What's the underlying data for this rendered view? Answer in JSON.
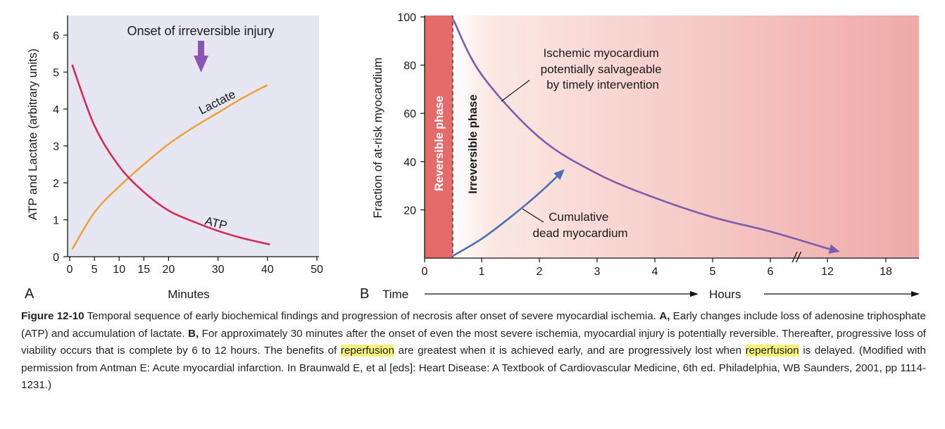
{
  "colors": {
    "panel_a_bg": "#e6e6f2",
    "atp": "#d42a55",
    "lactate": "#eda33d",
    "arrow_purple": "#8a55b3",
    "curve_b": "#7e5cad",
    "dead_curve": "#4a6fb2",
    "reversible_band": "#e56b6a",
    "highlight": "#f4f27c"
  },
  "chart_data": [
    {
      "panel": "A",
      "type": "line",
      "xlabel": "Minutes",
      "ylabel": "ATP and Lactate (arbitrary units)",
      "xlim": [
        0,
        50
      ],
      "ylim": [
        0,
        6.5
      ],
      "xticks": [
        "0",
        "5",
        "10",
        "15",
        "20",
        "30",
        "40",
        "50"
      ],
      "yticks": [
        "0",
        "1",
        "2",
        "3",
        "4",
        "5",
        "6"
      ],
      "annotation": "Onset of irreversible injury",
      "series": [
        {
          "name": "ATP",
          "x": [
            0.5,
            5,
            10,
            15,
            20,
            25,
            30,
            35,
            40.5
          ],
          "y": [
            5.2,
            3.55,
            2.45,
            1.75,
            1.25,
            0.95,
            0.7,
            0.5,
            0.33
          ]
        },
        {
          "name": "Lactate",
          "x": [
            0.5,
            5,
            10,
            15,
            20,
            25,
            30,
            35,
            40
          ],
          "y": [
            0.2,
            1.2,
            1.9,
            2.5,
            3.05,
            3.5,
            3.9,
            4.3,
            4.65
          ]
        }
      ],
      "grid": false
    },
    {
      "panel": "B",
      "type": "line",
      "xlabel": "Time",
      "x_unit_label": "Hours",
      "ylabel": "Fraction of at-risk myocardium",
      "ylim": [
        0,
        100
      ],
      "xticks": [
        "0",
        "1",
        "2",
        "3",
        "4",
        "5",
        "6",
        "12",
        "18"
      ],
      "yticks": [
        "20",
        "40",
        "60",
        "80",
        "100"
      ],
      "phases": [
        "Reversible phase",
        "Irreversible phase"
      ],
      "annotations": [
        "Ischemic myocardium potentially salvageable by timely intervention",
        "Cumulative dead myocardium"
      ],
      "series": [
        {
          "name": "Ischemic myocardium",
          "x": [
            0.5,
            1,
            2,
            3,
            4,
            5,
            6,
            12,
            13
          ],
          "y": [
            99,
            76,
            50,
            35,
            25,
            17,
            11,
            4,
            3
          ]
        },
        {
          "name": "Cumulative dead myocardium",
          "x": [
            0.5,
            1,
            1.5,
            2,
            2.4
          ],
          "y": [
            1,
            8,
            17,
            27,
            36
          ]
        }
      ],
      "grid": false
    }
  ],
  "figure": {
    "panel_a": {
      "letter": "A",
      "annotation": "Onset of irreversible injury",
      "atp_label": "ATP",
      "lactate_label": "Lactate",
      "xlabel": "Minutes",
      "ylabel": "ATP and Lactate (arbitrary units)"
    },
    "panel_b": {
      "letter": "B",
      "time_label": "Time",
      "hours_label": "Hours",
      "ylabel": "Fraction of at-risk myocardium",
      "reversible": "Reversible phase",
      "irreversible": "Irreversible phase",
      "ischemic_lines": [
        "Ischemic myocardium",
        "potentially salvageable",
        "by timely intervention"
      ],
      "dead_lines": [
        "Cumulative",
        "dead myocardium"
      ],
      "break_mark": "//"
    }
  },
  "caption": {
    "fig_num": "Figure 12-10",
    "t1": " Temporal sequence of early biochemical findings and progression of necrosis after onset of severe myocardial ischemia. ",
    "a_bold": "A,",
    "t2": " Early changes include loss of adenosine triphosphate (ATP) and accumulation of lactate. ",
    "b_bold": "B,",
    "t3": " For approximately 30 minutes after the onset of even the most severe ischemia, myo­cardial injury is potentially reversible. Thereafter, progressive loss of viability occurs that is complete by 6 to 12 hours. The benefits of ",
    "hl1": "reperfusion",
    "t4": " are greatest when it is achieved early, and are progressively lost when ",
    "hl2": "reperfusion",
    "t5": " is delayed. (Modified with permission from Antman E: Acute myocardial infarction. In Braunwald E, et al [eds]: Heart Disease: A Textbook of Cardiovascular Medicine, 6th ed. Philadelphia, WB Saunders, 2001, pp 1114-1231.)"
  }
}
